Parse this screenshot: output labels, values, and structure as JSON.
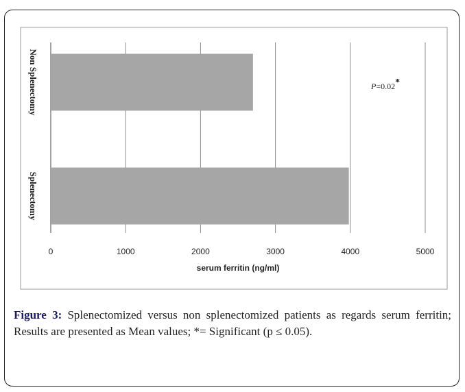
{
  "chart_data": {
    "type": "bar",
    "orientation": "horizontal",
    "categories": [
      "Non Splenectomy",
      "Splenectomy"
    ],
    "values": [
      2700,
      3980
    ],
    "color": "#a6a6a6",
    "xlim": [
      0,
      5000
    ],
    "xticks": [
      0,
      1000,
      2000,
      3000,
      4000,
      5000
    ],
    "grid": true,
    "x_label": "serum ferritin (ng/ml)",
    "annotation": {
      "italic": "P",
      "text": "=0.02",
      "superscript": "*"
    }
  },
  "caption": {
    "label": "Figure 3:",
    "text": "Splenectomized versus non splenectomized patients as regards serum ferritin; Results are presented as Mean values; *= Significant (p ≤ 0.05)."
  }
}
